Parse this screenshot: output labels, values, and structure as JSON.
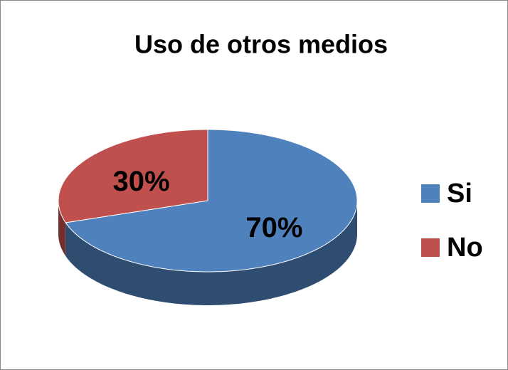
{
  "chart_data": {
    "type": "pie",
    "title": "Uso de otros medios",
    "categories": [
      "Si",
      "No"
    ],
    "values": [
      70,
      30
    ],
    "value_labels": [
      "70%",
      "30%"
    ],
    "colors": [
      "#4f81bd",
      "#c0504d"
    ],
    "legend": "right"
  }
}
